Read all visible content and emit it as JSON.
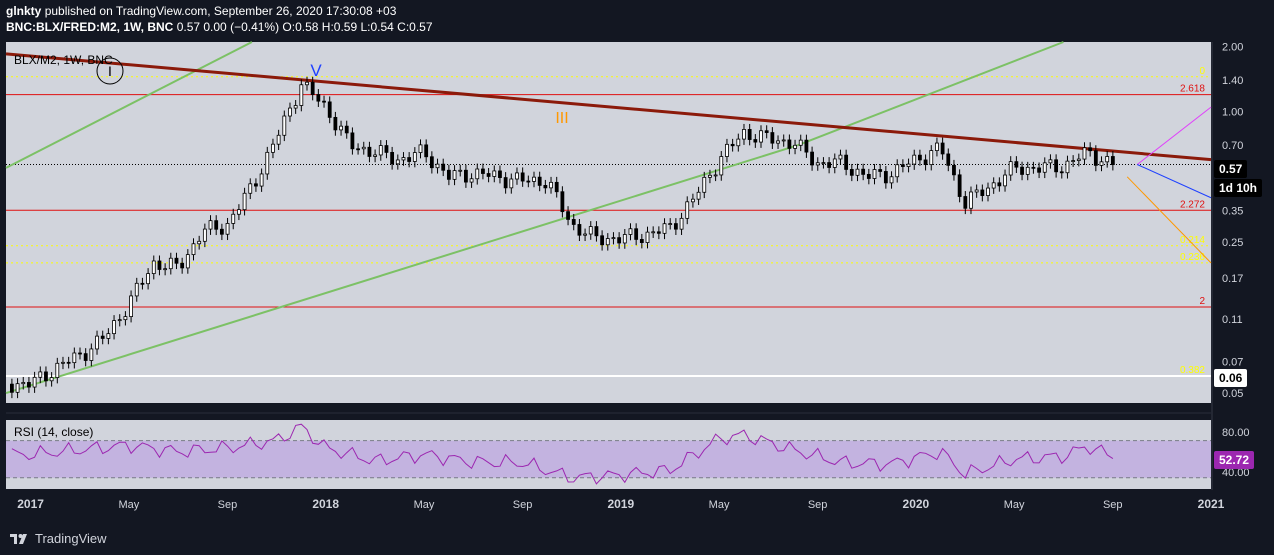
{
  "header": {
    "author": "glnkty",
    "published": "published on TradingView.com, September 26, 2020 17:30:08 +03",
    "symbol": "BNC:BLX/FRED:M2, 1W, BNC",
    "quote": "0.57 0.00 (−0.41%) O:0.58 H:0.59 L:0.54 C:0.57"
  },
  "legend": {
    "symbol": "BLX/M2, 1W, BNC"
  },
  "colors": {
    "background": "#131722",
    "plot_bg": "#d1d4dc",
    "candle": "#000000",
    "rsi_line": "#9c27b0",
    "rsi_band": "#c3b3e0",
    "resistance": "#8b1a0a",
    "channel": "#7cc165",
    "fib_red": "#e01010",
    "fib_yellow": "#ffff00"
  },
  "price_axis": {
    "ticks": [
      "2.00",
      "1.40",
      "1.00",
      "0.70",
      "0.35",
      "0.25",
      "0.17",
      "0.11",
      "0.07",
      "0.05"
    ],
    "last_price_tag": "0.57",
    "countdown_tag": "1d 10h",
    "level_tag": "0.06"
  },
  "rsi": {
    "title": "RSI (14, close)",
    "value_tag": "52.72",
    "ticks": [
      "80.00",
      "40.00"
    ]
  },
  "time_axis": [
    "2017",
    "May",
    "Sep",
    "2018",
    "May",
    "Sep",
    "2019",
    "May",
    "Sep",
    "2020",
    "May",
    "Sep",
    "2021"
  ],
  "annotations": {
    "wave_v": "V",
    "wave_iii": "III",
    "wave_i": "I",
    "fib_labels": [
      "0",
      "2.618",
      "2.272",
      "0.214",
      "0.236",
      "2",
      "0.382"
    ]
  },
  "footer": {
    "brand": "TradingView"
  },
  "chart_data": {
    "type": "candlestick",
    "title": "BLX/M2, 1W, BNC",
    "y_scale": "log",
    "ylim": [
      0.045,
      2.1
    ],
    "x_range": [
      "2016-12",
      "2021-01"
    ],
    "close_series": [
      [
        "2017-01",
        0.055
      ],
      [
        "2017-02",
        0.065
      ],
      [
        "2017-03",
        0.075
      ],
      [
        "2017-04",
        0.09
      ],
      [
        "2017-05",
        0.13
      ],
      [
        "2017-06",
        0.2
      ],
      [
        "2017-07",
        0.19
      ],
      [
        "2017-08",
        0.28
      ],
      [
        "2017-09",
        0.3
      ],
      [
        "2017-10",
        0.45
      ],
      [
        "2017-11",
        0.75
      ],
      [
        "2017-12",
        1.35
      ],
      [
        "2018-01",
        1.05
      ],
      [
        "2018-02",
        0.7
      ],
      [
        "2018-03",
        0.65
      ],
      [
        "2018-04",
        0.6
      ],
      [
        "2018-05",
        0.65
      ],
      [
        "2018-06",
        0.5
      ],
      [
        "2018-07",
        0.52
      ],
      [
        "2018-08",
        0.5
      ],
      [
        "2018-09",
        0.48
      ],
      [
        "2018-10",
        0.48
      ],
      [
        "2018-11",
        0.3
      ],
      [
        "2018-12",
        0.26
      ],
      [
        "2019-01",
        0.26
      ],
      [
        "2019-02",
        0.27
      ],
      [
        "2019-03",
        0.29
      ],
      [
        "2019-04",
        0.4
      ],
      [
        "2019-05",
        0.6
      ],
      [
        "2019-06",
        0.8
      ],
      [
        "2019-07",
        0.75
      ],
      [
        "2019-08",
        0.72
      ],
      [
        "2019-09",
        0.58
      ],
      [
        "2019-10",
        0.58
      ],
      [
        "2019-11",
        0.5
      ],
      [
        "2019-12",
        0.52
      ],
      [
        "2020-01",
        0.6
      ],
      [
        "2020-02",
        0.68
      ],
      [
        "2020-03",
        0.38
      ],
      [
        "2020-04",
        0.45
      ],
      [
        "2020-05",
        0.55
      ],
      [
        "2020-06",
        0.55
      ],
      [
        "2020-07",
        0.56
      ],
      [
        "2020-08",
        0.65
      ],
      [
        "2020-09",
        0.57
      ]
    ],
    "rsi_series": [
      [
        "2017-01",
        55
      ],
      [
        "2017-03",
        60
      ],
      [
        "2017-05",
        65
      ],
      [
        "2017-07",
        58
      ],
      [
        "2017-09",
        62
      ],
      [
        "2017-11",
        70
      ],
      [
        "2017-12",
        85
      ],
      [
        "2018-01",
        62
      ],
      [
        "2018-03",
        48
      ],
      [
        "2018-05",
        55
      ],
      [
        "2018-07",
        47
      ],
      [
        "2018-09",
        46
      ],
      [
        "2018-11",
        30
      ],
      [
        "2019-01",
        33
      ],
      [
        "2019-03",
        38
      ],
      [
        "2019-05",
        72
      ],
      [
        "2019-06",
        76
      ],
      [
        "2019-08",
        60
      ],
      [
        "2019-10",
        46
      ],
      [
        "2019-12",
        45
      ],
      [
        "2020-02",
        58
      ],
      [
        "2020-03",
        34
      ],
      [
        "2020-05",
        50
      ],
      [
        "2020-07",
        53
      ],
      [
        "2020-08",
        64
      ],
      [
        "2020-09",
        52.72
      ]
    ],
    "rsi_bands": [
      30,
      70
    ]
  }
}
